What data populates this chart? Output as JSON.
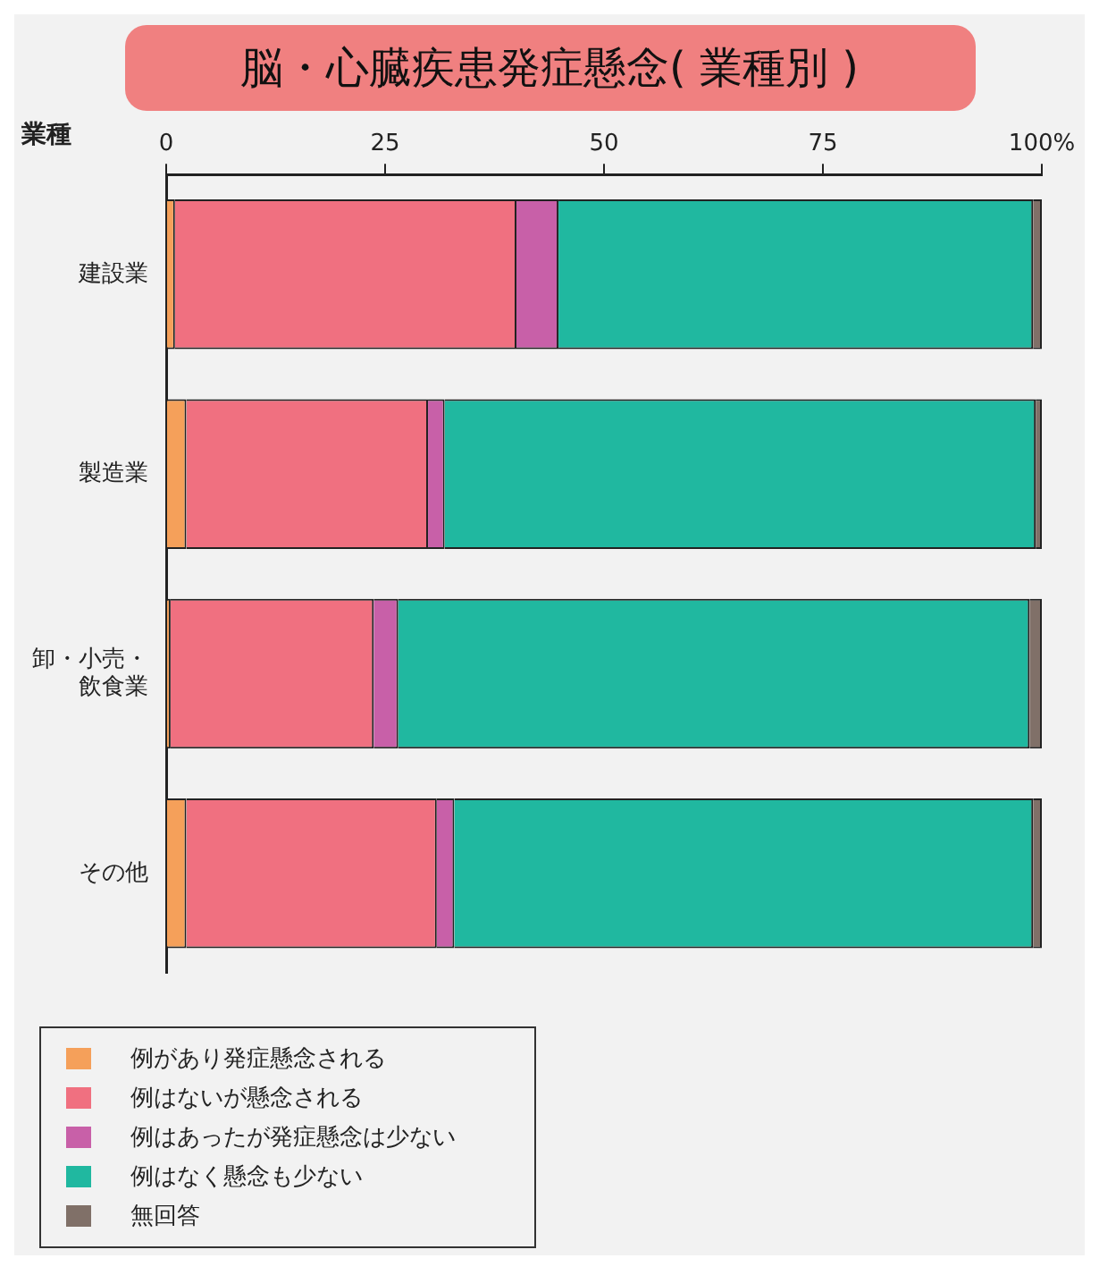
{
  "chart_data": {
    "type": "bar",
    "orientation": "horizontal",
    "stacked": true,
    "title": "脳・心臓疾患発症懸念( 業種別 )",
    "ylabel": "業種",
    "categories": [
      "建設業",
      "製造業",
      "卸・小売・飲食業",
      "その他"
    ],
    "series": [
      {
        "name": "例があり発症懸念される",
        "color": "#f5a05a",
        "values": [
          1.0,
          2.3,
          0.5,
          2.3
        ]
      },
      {
        "name": "例はないが懸念される",
        "color": "#f07080",
        "values": [
          39.0,
          27.6,
          23.2,
          28.6
        ]
      },
      {
        "name": "例はあったが発症懸念は少ない",
        "color": "#c860a8",
        "values": [
          4.8,
          1.9,
          2.8,
          2.0
        ]
      },
      {
        "name": "例はなく懸念も少ない",
        "color": "#20b8a0",
        "values": [
          54.2,
          67.5,
          72.1,
          66.1
        ]
      },
      {
        "name": "無回答",
        "color": "#807068",
        "values": [
          1.0,
          0.7,
          1.4,
          1.0
        ]
      }
    ],
    "xlim": [
      0,
      100
    ],
    "xticks": [
      0,
      25,
      50,
      {
        "value": 75,
        "label": "75"
      },
      {
        "value": 100,
        "label": "100%"
      }
    ],
    "grid": false,
    "legend": "bottom left"
  }
}
